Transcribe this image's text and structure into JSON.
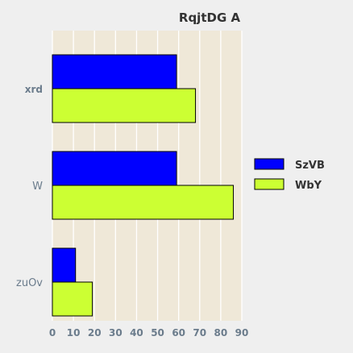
{
  "chart_data": {
    "type": "bar",
    "orientation": "horizontal",
    "title": "RqjtDG A",
    "categories": [
      "xrd",
      "W",
      "zuOv"
    ],
    "series": [
      {
        "name": "SzVB",
        "values": [
          59,
          59,
          11
        ],
        "color": "#0000ff"
      },
      {
        "name": "WbY",
        "values": [
          68,
          86,
          19
        ],
        "color": "#ccff33"
      }
    ],
    "xlim": [
      0,
      90
    ],
    "x_ticks": [
      0,
      10,
      20,
      30,
      40,
      50,
      60,
      70,
      80,
      90
    ],
    "xlabel": "",
    "ylabel": "",
    "grid": true,
    "legend_position": "right",
    "plot_background": "#efe8d8",
    "page_background": "#efefef",
    "grid_color": "#ffffff",
    "bar_edge_color": "#000000"
  }
}
